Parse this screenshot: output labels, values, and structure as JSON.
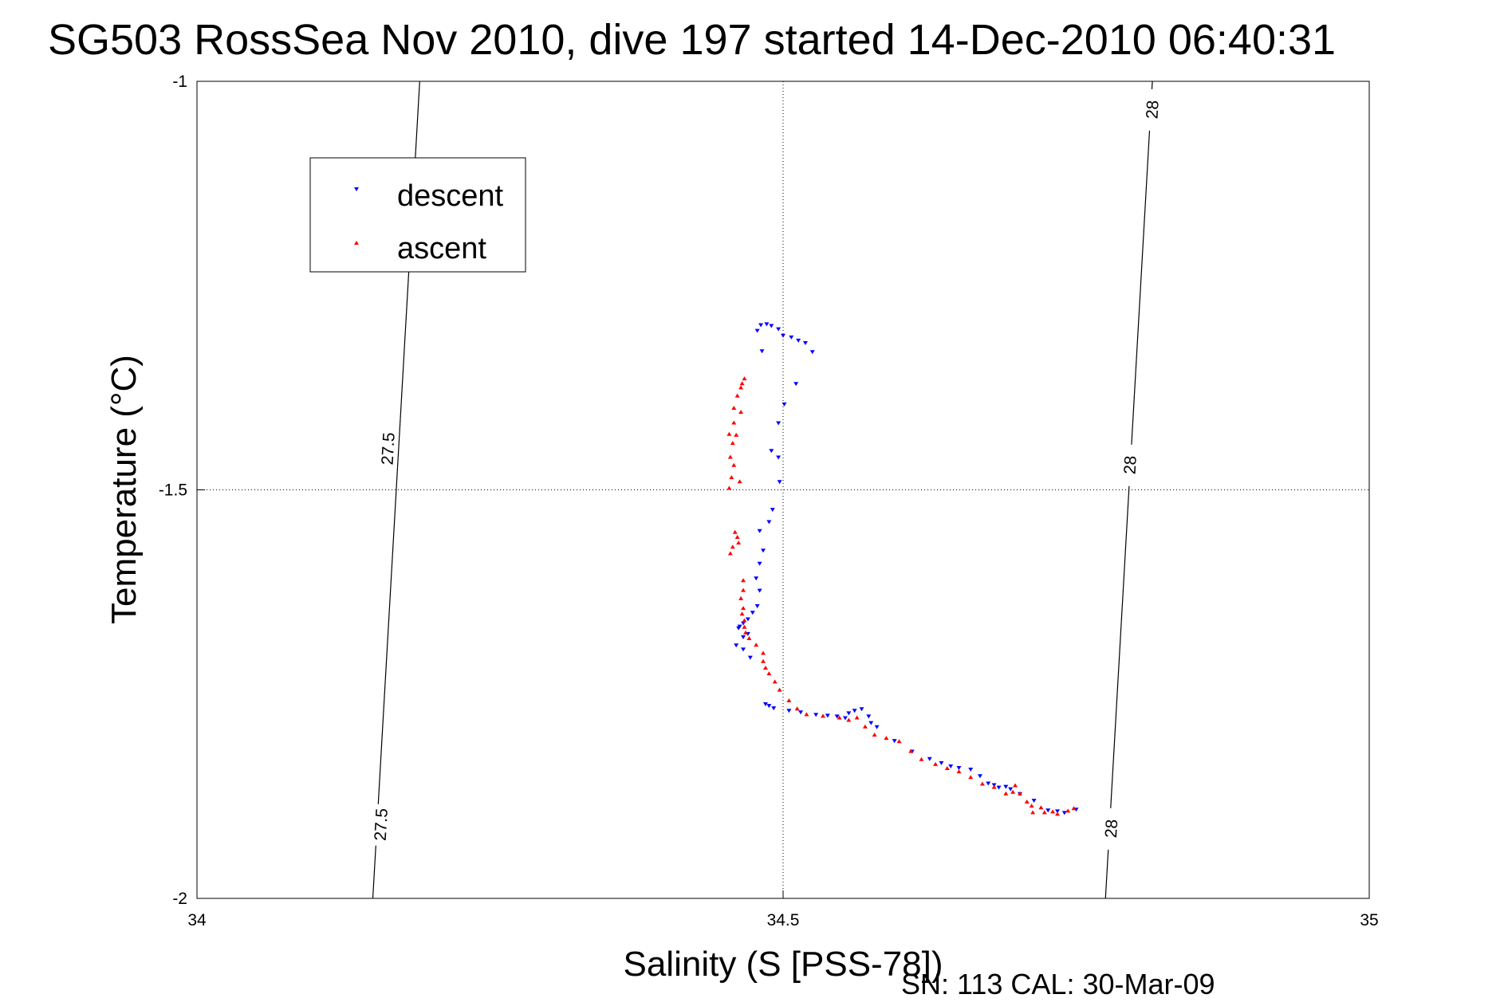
{
  "chart_data": {
    "type": "scatter",
    "title": "SG503 RossSea Nov 2010, dive 197 started 14-Dec-2010 06:40:31",
    "xlabel": "Salinity (S [PSS-78])",
    "ylabel": "Temperature (°C)",
    "xlim": [
      34,
      35
    ],
    "ylim": [
      -2,
      -1
    ],
    "x_ticks": [
      34,
      34.5,
      35
    ],
    "x_tick_labels": [
      "34",
      "34.5",
      "35"
    ],
    "y_ticks": [
      -2,
      -1.5,
      -1
    ],
    "y_tick_labels": [
      "-2",
      "-1.5",
      "-1"
    ],
    "grid": true,
    "legend_position": "top-left",
    "footer": "SN: 113  CAL: 30-Mar-09",
    "contours": [
      {
        "label": "27.5",
        "points": [
          [
            34.15,
            -2.0
          ],
          [
            34.19,
            -1.0
          ]
        ],
        "label_positions": [
          [
            34.163,
            -1.45
          ],
          [
            34.157,
            -1.91
          ]
        ]
      },
      {
        "label": "28",
        "points": [
          [
            34.775,
            -2.0
          ],
          [
            34.815,
            -1.0
          ]
        ],
        "label_positions": [
          [
            34.815,
            -1.035
          ],
          [
            34.796,
            -1.47
          ],
          [
            34.78,
            -1.915
          ]
        ]
      }
    ],
    "series": [
      {
        "name": "descent",
        "color": "#0000ff",
        "marker": "triangle-down",
        "points": [
          [
            34.481,
            -1.298
          ],
          [
            34.486,
            -1.297
          ],
          [
            34.49,
            -1.299
          ],
          [
            34.478,
            -1.305
          ],
          [
            34.496,
            -1.303
          ],
          [
            34.5,
            -1.311
          ],
          [
            34.507,
            -1.313
          ],
          [
            34.513,
            -1.317
          ],
          [
            34.519,
            -1.32
          ],
          [
            34.525,
            -1.331
          ],
          [
            34.482,
            -1.33
          ],
          [
            34.511,
            -1.37
          ],
          [
            34.501,
            -1.395
          ],
          [
            34.496,
            -1.418
          ],
          [
            34.49,
            -1.452
          ],
          [
            34.496,
            -1.46
          ],
          [
            34.497,
            -1.49
          ],
          [
            34.491,
            -1.524
          ],
          [
            34.488,
            -1.539
          ],
          [
            34.48,
            -1.55
          ],
          [
            34.483,
            -1.574
          ],
          [
            34.48,
            -1.59
          ],
          [
            34.477,
            -1.608
          ],
          [
            34.48,
            -1.623
          ],
          [
            34.478,
            -1.642
          ],
          [
            34.474,
            -1.65
          ],
          [
            34.47,
            -1.658
          ],
          [
            34.466,
            -1.663
          ],
          [
            34.463,
            -1.667
          ],
          [
            34.47,
            -1.676
          ],
          [
            34.466,
            -1.68
          ],
          [
            34.462,
            -1.669
          ],
          [
            34.46,
            -1.69
          ],
          [
            34.466,
            -1.695
          ],
          [
            34.472,
            -1.705
          ],
          [
            34.485,
            -1.762
          ],
          [
            34.488,
            -1.764
          ],
          [
            34.492,
            -1.767
          ],
          [
            34.505,
            -1.77
          ],
          [
            34.515,
            -1.772
          ],
          [
            34.528,
            -1.775
          ],
          [
            34.538,
            -1.776
          ],
          [
            34.546,
            -1.777
          ],
          [
            34.553,
            -1.779
          ],
          [
            34.556,
            -1.773
          ],
          [
            34.561,
            -1.77
          ],
          [
            34.567,
            -1.768
          ],
          [
            34.573,
            -1.777
          ],
          [
            34.575,
            -1.785
          ],
          [
            34.58,
            -1.79
          ],
          [
            34.595,
            -1.807
          ],
          [
            34.61,
            -1.82
          ],
          [
            34.625,
            -1.829
          ],
          [
            34.635,
            -1.834
          ],
          [
            34.643,
            -1.838
          ],
          [
            34.65,
            -1.84
          ],
          [
            34.66,
            -1.842
          ],
          [
            34.668,
            -1.85
          ],
          [
            34.675,
            -1.859
          ],
          [
            34.68,
            -1.861
          ],
          [
            34.684,
            -1.864
          ],
          [
            34.69,
            -1.863
          ],
          [
            34.694,
            -1.866
          ],
          [
            34.702,
            -1.872
          ],
          [
            34.714,
            -1.88
          ],
          [
            34.726,
            -1.892
          ],
          [
            34.734,
            -1.893
          ],
          [
            34.74,
            -1.895
          ],
          [
            34.75,
            -1.891
          ]
        ]
      },
      {
        "name": "ascent",
        "color": "#ff0000",
        "marker": "triangle-up",
        "points": [
          [
            34.467,
            -1.364
          ],
          [
            34.465,
            -1.37
          ],
          [
            34.464,
            -1.375
          ],
          [
            34.461,
            -1.385
          ],
          [
            34.458,
            -1.4
          ],
          [
            34.464,
            -1.405
          ],
          [
            34.458,
            -1.418
          ],
          [
            34.454,
            -1.432
          ],
          [
            34.46,
            -1.433
          ],
          [
            34.457,
            -1.443
          ],
          [
            34.455,
            -1.46
          ],
          [
            34.458,
            -1.47
          ],
          [
            34.456,
            -1.485
          ],
          [
            34.463,
            -1.49
          ],
          [
            34.454,
            -1.498
          ],
          [
            34.459,
            -1.552
          ],
          [
            34.461,
            -1.558
          ],
          [
            34.462,
            -1.565
          ],
          [
            34.457,
            -1.57
          ],
          [
            34.455,
            -1.578
          ],
          [
            34.466,
            -1.611
          ],
          [
            34.466,
            -1.623
          ],
          [
            34.464,
            -1.633
          ],
          [
            34.466,
            -1.645
          ],
          [
            34.465,
            -1.652
          ],
          [
            34.467,
            -1.66
          ],
          [
            34.467,
            -1.668
          ],
          [
            34.468,
            -1.675
          ],
          [
            34.471,
            -1.682
          ],
          [
            34.477,
            -1.69
          ],
          [
            34.483,
            -1.7
          ],
          [
            34.483,
            -1.71
          ],
          [
            34.485,
            -1.718
          ],
          [
            34.488,
            -1.725
          ],
          [
            34.493,
            -1.735
          ],
          [
            34.497,
            -1.745
          ],
          [
            34.505,
            -1.758
          ],
          [
            34.512,
            -1.768
          ],
          [
            34.52,
            -1.775
          ],
          [
            34.534,
            -1.777
          ],
          [
            34.548,
            -1.779
          ],
          [
            34.556,
            -1.782
          ],
          [
            34.563,
            -1.779
          ],
          [
            34.57,
            -1.79
          ],
          [
            34.578,
            -1.8
          ],
          [
            34.588,
            -1.804
          ],
          [
            34.599,
            -1.808
          ],
          [
            34.609,
            -1.82
          ],
          [
            34.618,
            -1.83
          ],
          [
            34.63,
            -1.836
          ],
          [
            34.64,
            -1.841
          ],
          [
            34.65,
            -1.845
          ],
          [
            34.66,
            -1.852
          ],
          [
            34.67,
            -1.86
          ],
          [
            34.68,
            -1.864
          ],
          [
            34.69,
            -1.872
          ],
          [
            34.696,
            -1.87
          ],
          [
            34.698,
            -1.862
          ],
          [
            34.702,
            -1.872
          ],
          [
            34.708,
            -1.882
          ],
          [
            34.712,
            -1.887
          ],
          [
            34.713,
            -1.895
          ],
          [
            34.72,
            -1.889
          ],
          [
            34.723,
            -1.895
          ],
          [
            34.73,
            -1.894
          ],
          [
            34.734,
            -1.897
          ],
          [
            34.743,
            -1.893
          ],
          [
            34.748,
            -1.89
          ]
        ]
      }
    ]
  }
}
